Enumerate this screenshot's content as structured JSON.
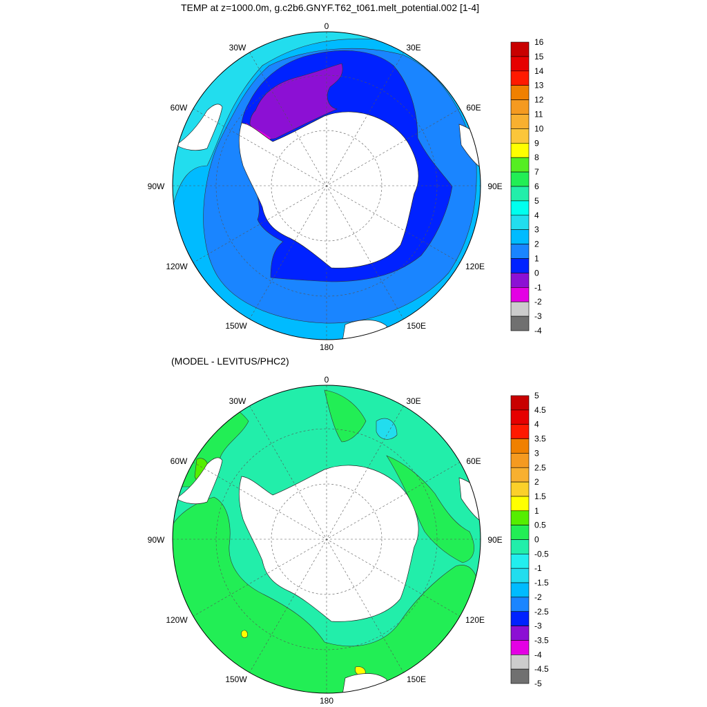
{
  "panels": [
    {
      "title": "TEMP at z=1000.0m, g.c2b6.GNYF.T62_t061.melt_potential.002 [1-4]",
      "lon_labels": [
        "0",
        "30E",
        "60E",
        "90E",
        "120E",
        "150E",
        "180",
        "150W",
        "120W",
        "90W",
        "60W",
        "30W"
      ],
      "colorbar": {
        "labels": [
          "16",
          "15",
          "14",
          "13",
          "12",
          "11",
          "10",
          "9",
          "8",
          "7",
          "6",
          "5",
          "4",
          "3",
          "2",
          "1",
          "0",
          "-1",
          "-2",
          "-3",
          "-4"
        ],
        "colors": [
          "#c80000",
          "#e60000",
          "#ff1a00",
          "#f08000",
          "#f59a20",
          "#f8b030",
          "#fbc63a",
          "#ffff00",
          "#55ee22",
          "#22ee55",
          "#22eeaa",
          "#00ffee",
          "#22ddee",
          "#00bbff",
          "#1a85ff",
          "#0022ff",
          "#8c10d4",
          "#e400e4",
          "#cccccc",
          "#707070"
        ]
      }
    },
    {
      "title": "(MODEL - LEVITUS/PHC2)",
      "lon_labels": [
        "0",
        "30E",
        "60E",
        "90E",
        "120E",
        "150E",
        "180",
        "150W",
        "120W",
        "90W",
        "60W",
        "30W"
      ],
      "colorbar": {
        "labels": [
          "5",
          "4.5",
          "4",
          "3.5",
          "3",
          "2.5",
          "2",
          "1.5",
          "1",
          "0.5",
          "0",
          "-0.5",
          "-1",
          "-1.5",
          "-2",
          "-2.5",
          "-3",
          "-3.5",
          "-4",
          "-4.5",
          "-5"
        ],
        "colors": [
          "#c80000",
          "#e60000",
          "#ff1a00",
          "#f08000",
          "#f59a20",
          "#f8b030",
          "#fbd02a",
          "#ffff00",
          "#55ee00",
          "#22ee55",
          "#22eeaa",
          "#22eeee",
          "#22ddee",
          "#00bbff",
          "#1a85ff",
          "#0022ff",
          "#8c10d4",
          "#e400e4",
          "#cccccc",
          "#707070"
        ]
      }
    }
  ]
}
